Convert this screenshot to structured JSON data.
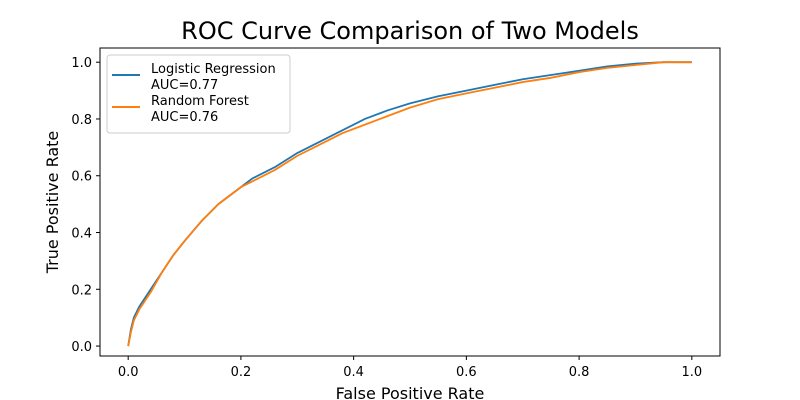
{
  "chart_data": {
    "type": "line",
    "title": "ROC Curve Comparison of Two Models",
    "xlabel": "False Positive Rate",
    "ylabel": "True Positive Rate",
    "xlim": [
      -0.05,
      1.05
    ],
    "ylim": [
      -0.035,
      1.05
    ],
    "xticks": [
      0.0,
      0.2,
      0.4,
      0.6,
      0.8,
      1.0
    ],
    "yticks": [
      0.0,
      0.2,
      0.4,
      0.6,
      0.8,
      1.0
    ],
    "xtick_labels": [
      "0.0",
      "0.2",
      "0.4",
      "0.6",
      "0.8",
      "1.0"
    ],
    "ytick_labels": [
      "0.0",
      "0.2",
      "0.4",
      "0.6",
      "0.8",
      "1.0"
    ],
    "grid": false,
    "legend_position": "top-left",
    "series": [
      {
        "name": "Logistic Regression",
        "legend_lines": [
          "Logistic Regression",
          "AUC=0.77"
        ],
        "color": "#1f77b4",
        "x": [
          0.0,
          0.005,
          0.01,
          0.02,
          0.04,
          0.06,
          0.08,
          0.1,
          0.13,
          0.16,
          0.2,
          0.22,
          0.26,
          0.3,
          0.34,
          0.38,
          0.42,
          0.46,
          0.5,
          0.55,
          0.6,
          0.65,
          0.7,
          0.75,
          0.8,
          0.85,
          0.9,
          0.95,
          1.0
        ],
        "y": [
          0.0,
          0.06,
          0.1,
          0.14,
          0.2,
          0.26,
          0.32,
          0.37,
          0.44,
          0.5,
          0.56,
          0.59,
          0.63,
          0.68,
          0.72,
          0.76,
          0.8,
          0.83,
          0.855,
          0.88,
          0.9,
          0.92,
          0.94,
          0.955,
          0.97,
          0.985,
          0.995,
          1.0,
          1.0
        ]
      },
      {
        "name": "Random Forest",
        "legend_lines": [
          "Random Forest",
          "AUC=0.76"
        ],
        "color": "#ff7f0e",
        "x": [
          0.0,
          0.005,
          0.01,
          0.02,
          0.04,
          0.06,
          0.08,
          0.1,
          0.13,
          0.16,
          0.2,
          0.22,
          0.26,
          0.3,
          0.34,
          0.38,
          0.42,
          0.46,
          0.5,
          0.55,
          0.6,
          0.65,
          0.7,
          0.75,
          0.8,
          0.85,
          0.9,
          0.95,
          1.0
        ],
        "y": [
          0.0,
          0.05,
          0.09,
          0.13,
          0.19,
          0.26,
          0.32,
          0.37,
          0.44,
          0.5,
          0.56,
          0.58,
          0.62,
          0.67,
          0.71,
          0.75,
          0.78,
          0.81,
          0.84,
          0.87,
          0.89,
          0.91,
          0.93,
          0.945,
          0.965,
          0.98,
          0.99,
          1.0,
          1.0
        ]
      }
    ]
  }
}
